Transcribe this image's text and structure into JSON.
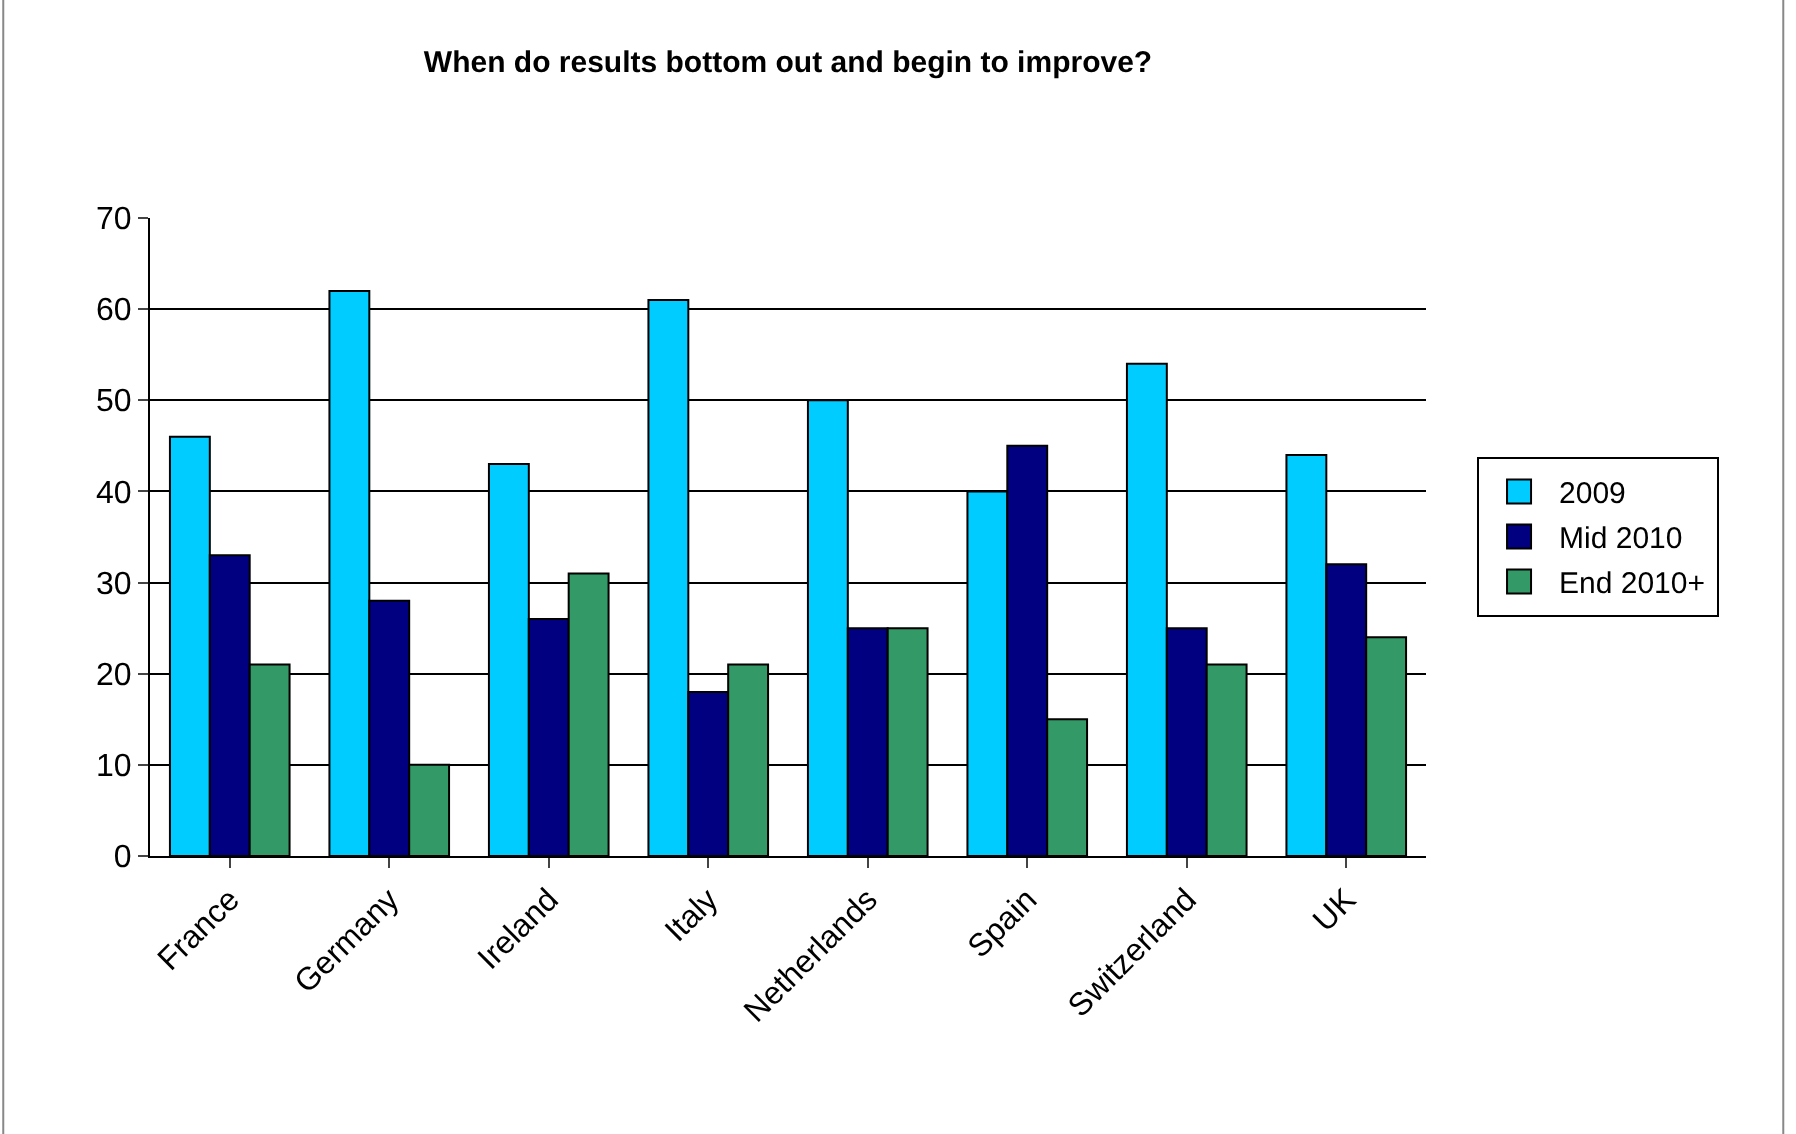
{
  "chart_data": {
    "type": "bar",
    "title": "When do results bottom out and begin to improve?",
    "categories": [
      "France",
      "Germany",
      "Ireland",
      "Italy",
      "Netherlands",
      "Spain",
      "Switzerland",
      "UK"
    ],
    "series": [
      {
        "name": "2009",
        "color": "#00ccff",
        "values": [
          46,
          62,
          43,
          61,
          50,
          40,
          54,
          44
        ]
      },
      {
        "name": "Mid 2010",
        "color": "#000080",
        "values": [
          33,
          28,
          26,
          18,
          25,
          45,
          25,
          32
        ]
      },
      {
        "name": "End 2010+",
        "color": "#339966",
        "values": [
          21,
          10,
          31,
          21,
          25,
          15,
          21,
          24
        ]
      }
    ],
    "ylim": [
      0,
      70
    ],
    "yticks": [
      0,
      10,
      20,
      30,
      40,
      50,
      60,
      70
    ],
    "grid": "y",
    "legend": "right"
  }
}
